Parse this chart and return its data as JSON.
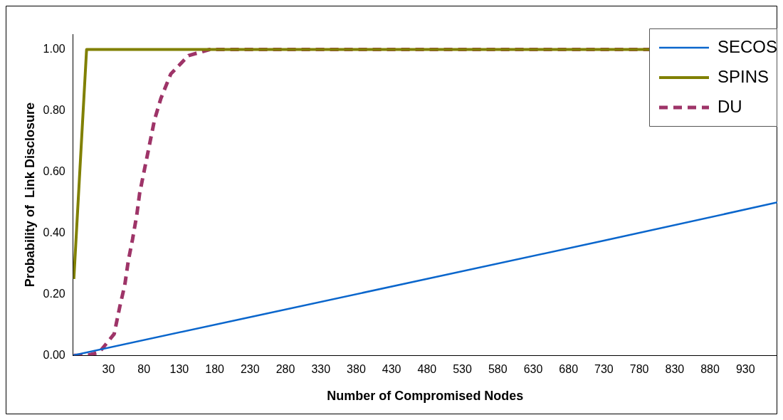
{
  "chart_data": {
    "type": "line",
    "xlabel": "Number of Compromised Nodes",
    "ylabel": "Probability of  Link Disclosure",
    "xlim": [
      -20,
      975
    ],
    "xticks": [
      30,
      80,
      130,
      180,
      230,
      280,
      330,
      380,
      430,
      480,
      530,
      580,
      630,
      680,
      730,
      780,
      830,
      880,
      930
    ],
    "ylim": [
      0,
      1.05
    ],
    "yticks": [
      {
        "value": 0,
        "label": "0.00"
      },
      {
        "value": 0.2,
        "label": "0.20"
      },
      {
        "value": 0.4,
        "label": "0.40"
      },
      {
        "value": 0.6,
        "label": "0.60"
      },
      {
        "value": 0.8,
        "label": "0.80"
      },
      {
        "value": 1,
        "label": "1.00"
      }
    ],
    "grid": false,
    "legend": "top right",
    "marker": "none",
    "series": [
      {
        "name": "SECOS",
        "color": "#0a66cc",
        "line_style": "solid",
        "x": [
          -20,
          230,
          480,
          730,
          975
        ],
        "values": [
          0,
          0.125,
          0.25,
          0.375,
          0.5
        ]
      },
      {
        "name": "SPINS",
        "color": "#808000",
        "line_style": "solid",
        "x": [
          -19,
          -1,
          975
        ],
        "values": [
          0.25,
          1,
          1
        ]
      },
      {
        "name": "DU",
        "color": "#9e3468",
        "line_style": "dashed",
        "x": [
          -19,
          0,
          17,
          38,
          46,
          53,
          58,
          64,
          70,
          74,
          81,
          88,
          95,
          104,
          118,
          143,
          173,
          975
        ],
        "values": [
          0,
          0,
          0.01,
          0.07,
          0.16,
          0.23,
          0.31,
          0.38,
          0.46,
          0.53,
          0.61,
          0.69,
          0.77,
          0.84,
          0.92,
          0.98,
          1,
          1
        ]
      }
    ]
  }
}
